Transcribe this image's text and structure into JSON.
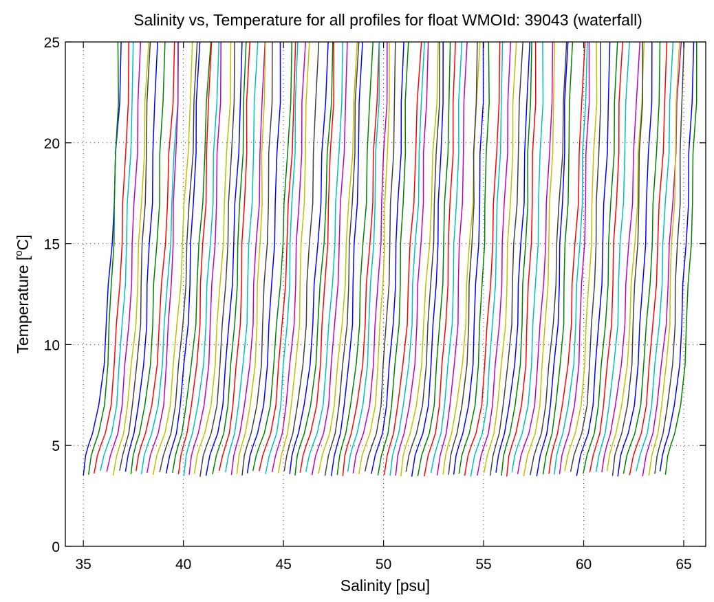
{
  "chart_data": {
    "type": "line",
    "title": "Salinity vs, Temperature for all profiles for float WMOId: 39043 (waterfall)",
    "xlabel": "Salinity [psu]",
    "ylabel_main": "Temperature [",
    "ylabel_sup": "o",
    "ylabel_end": "C]",
    "xlim": [
      34.1,
      66.1
    ],
    "ylim": [
      0,
      25
    ],
    "xticks": [
      35,
      40,
      45,
      50,
      55,
      60,
      65
    ],
    "yticks": [
      0,
      5,
      10,
      15,
      20,
      25
    ],
    "grid": true,
    "profile_count": 100,
    "first_profile_offset_psu": 35,
    "profile_spacing_psu": 0.2939,
    "color_cycle": [
      "#0000ff",
      "#008000",
      "#ff0000",
      "#00bfbf",
      "#bf00bf",
      "#bfbf00",
      "#404040"
    ],
    "series": [
      {
        "name": "",
        "salinity": [
          35.1,
          35.25,
          35.4,
          35.6,
          35.85,
          36.05,
          36.2,
          36.3,
          36.4,
          36.5,
          36.6,
          36.7,
          36.8
        ],
        "temperature": [
          3.6,
          4.5,
          5.0,
          5.6,
          7.0,
          9.0,
          11.0,
          13.0,
          15.0,
          17.0,
          19.5,
          22.0,
          25.0
        ]
      }
    ]
  }
}
